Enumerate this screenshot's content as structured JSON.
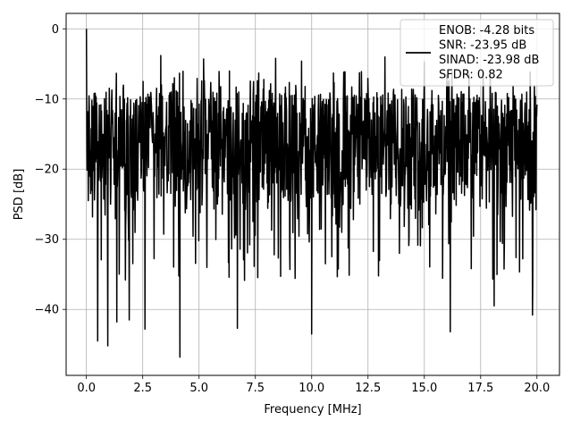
{
  "chart_data": {
    "type": "line",
    "title": "",
    "xlabel": "Frequency [MHz]",
    "ylabel": "PSD [dB]",
    "xlim": [
      -0.9,
      21.0
    ],
    "ylim": [
      -49.4,
      2.2
    ],
    "xticks": [
      0.0,
      2.5,
      5.0,
      7.5,
      10.0,
      12.5,
      15.0,
      17.5,
      20.0
    ],
    "xtick_labels": [
      "0.0",
      "2.5",
      "5.0",
      "7.5",
      "10.0",
      "12.5",
      "15.0",
      "17.5",
      "20.0"
    ],
    "yticks": [
      0,
      -10,
      -20,
      -30,
      -40
    ],
    "ytick_labels": [
      "0",
      "−10",
      "−20",
      "−30",
      "−40"
    ],
    "grid": true,
    "legend_position": "top-right",
    "series": [
      {
        "name": "ENOB: -4.28 bits\nSNR: -23.95 dB\nSINAD: -23.98 dB\nSFDR: 0.82",
        "color": "#000000",
        "x_range": [
          0.0,
          20.0
        ],
        "typical_range": [
          -26,
          -9
        ],
        "peak": {
          "x": 0.0,
          "y": 0.0
        },
        "notable_dips": [
          {
            "x": 0.5,
            "y": -44.5
          },
          {
            "x": 0.95,
            "y": -45.2
          },
          {
            "x": 1.35,
            "y": -41.8
          },
          {
            "x": 1.9,
            "y": -41.5
          },
          {
            "x": 2.6,
            "y": -42.8
          },
          {
            "x": 4.15,
            "y": -46.8
          },
          {
            "x": 6.7,
            "y": -42.7
          },
          {
            "x": 10.0,
            "y": -43.5
          },
          {
            "x": 16.15,
            "y": -43.2
          },
          {
            "x": 18.1,
            "y": -39.5
          },
          {
            "x": 19.8,
            "y": -40.8
          }
        ],
        "notable_spikes": [
          {
            "x": 3.3,
            "y": -3.8
          },
          {
            "x": 5.2,
            "y": -4.3
          },
          {
            "x": 8.4,
            "y": -4.2
          },
          {
            "x": 9.55,
            "y": -4.6
          },
          {
            "x": 13.25,
            "y": -4.0
          },
          {
            "x": 15.0,
            "y": -4.7
          }
        ]
      }
    ]
  }
}
